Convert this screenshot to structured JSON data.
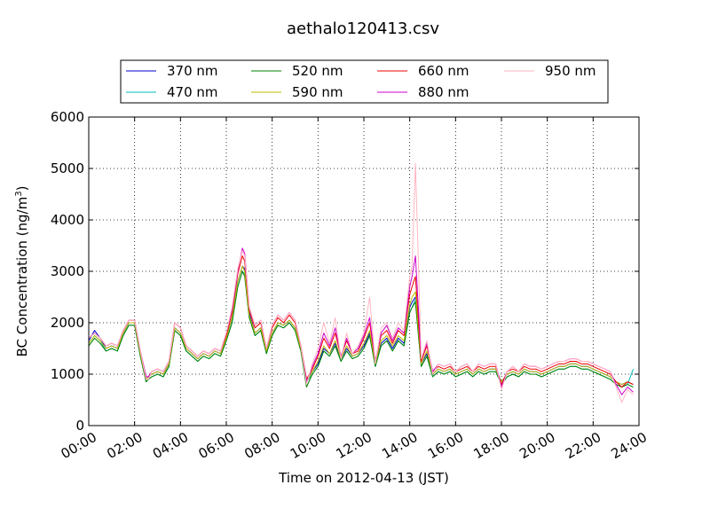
{
  "chart_data": {
    "type": "line",
    "title": "aethalo120413.csv",
    "xlabel": "Time on 2012-04-13 (JST)",
    "ylabel": "BC Concentration (ng/m",
    "ylabel_sup": "3",
    "ylabel_end": ")",
    "xlim": [
      0,
      24
    ],
    "ylim": [
      0,
      6000
    ],
    "x_ticks": [
      0,
      2,
      4,
      6,
      8,
      10,
      12,
      14,
      16,
      18,
      20,
      22,
      24
    ],
    "x_tick_labels": [
      "00:00",
      "02:00",
      "04:00",
      "06:00",
      "08:00",
      "10:00",
      "12:00",
      "14:00",
      "16:00",
      "18:00",
      "20:00",
      "22:00",
      "24:00"
    ],
    "y_ticks": [
      0,
      1000,
      2000,
      3000,
      4000,
      5000,
      6000
    ],
    "y_tick_labels": [
      "0",
      "1000",
      "2000",
      "3000",
      "4000",
      "5000",
      "6000"
    ],
    "grid": true,
    "legend_placement": "top-center",
    "base_x": [
      0,
      0.25,
      0.5,
      0.75,
      1.0,
      1.25,
      1.5,
      1.75,
      2.0,
      2.25,
      2.5,
      2.6,
      2.75,
      3.0,
      3.25,
      3.5,
      3.75,
      4.0,
      4.25,
      4.5,
      4.75,
      5.0,
      5.25,
      5.5,
      5.75,
      6.0,
      6.25,
      6.5,
      6.7,
      6.8,
      7.0,
      7.25,
      7.5,
      7.75,
      8.0,
      8.25,
      8.5,
      8.75,
      9.0,
      9.25,
      9.5,
      9.75,
      10.0,
      10.25,
      10.5,
      10.75,
      11.0,
      11.25,
      11.5,
      11.75,
      12.0,
      12.25,
      12.5,
      12.75,
      13.0,
      13.25,
      13.5,
      13.75,
      14.0,
      14.1,
      14.25,
      14.5,
      14.75,
      15.0,
      15.25,
      15.5,
      15.75,
      16.0,
      16.25,
      16.5,
      16.75,
      17.0,
      17.25,
      17.5,
      17.75,
      18.0,
      18.25,
      18.5,
      18.75,
      19.0,
      19.25,
      19.5,
      19.75,
      20.0,
      20.25,
      20.5,
      20.75,
      21.0,
      21.25,
      21.5,
      21.75,
      22.0,
      22.25,
      22.5,
      22.75,
      23.0,
      23.25,
      23.5,
      23.75
    ],
    "series": [
      {
        "name": "370 nm",
        "color": "#0000cc",
        "values": [
          1650,
          1850,
          1700,
          1500,
          1550,
          1500,
          1800,
          2000,
          2000,
          1400,
          900,
          950,
          1000,
          1050,
          1000,
          1200,
          1900,
          1800,
          1500,
          1400,
          1300,
          1400,
          1350,
          1450,
          1400,
          1700,
          2100,
          2800,
          3100,
          3050,
          2200,
          1800,
          1900,
          1450,
          1800,
          2000,
          1950,
          2050,
          1900,
          1500,
          900,
          1050,
          1200,
          1500,
          1400,
          1600,
          1300,
          1500,
          1350,
          1400,
          1550,
          1800,
          1200,
          1600,
          1700,
          1500,
          1700,
          1600,
          2300,
          2400,
          2500,
          1200,
          1400,
          1000,
          1100,
          1050,
          1100,
          1000,
          1050,
          1100,
          1000,
          1100,
          1050,
          1100,
          1100,
          850,
          1000,
          1050,
          1000,
          1100,
          1050,
          1050,
          1000,
          1050,
          1100,
          1150,
          1150,
          1200,
          1200,
          1150,
          1150,
          1100,
          1050,
          1000,
          950,
          850,
          800,
          850,
          800
        ]
      },
      {
        "name": "470 nm",
        "color": "#00bbbb",
        "values": [
          1600,
          1750,
          1650,
          1450,
          1500,
          1450,
          1750,
          1950,
          1950,
          1350,
          850,
          900,
          950,
          1000,
          950,
          1150,
          1850,
          1750,
          1450,
          1350,
          1250,
          1350,
          1300,
          1400,
          1350,
          1650,
          2000,
          2700,
          3000,
          2950,
          2100,
          1750,
          1850,
          1400,
          1750,
          1950,
          1900,
          2000,
          1850,
          1450,
          850,
          1000,
          1150,
          1450,
          1350,
          1550,
          1250,
          1450,
          1300,
          1350,
          1500,
          1750,
          1150,
          1550,
          1650,
          1450,
          1650,
          1550,
          2200,
          2300,
          2450,
          1150,
          1350,
          950,
          1050,
          1000,
          1050,
          950,
          1000,
          1050,
          950,
          1050,
          1000,
          1050,
          1050,
          800,
          950,
          1000,
          950,
          1050,
          1000,
          1000,
          950,
          1000,
          1050,
          1100,
          1100,
          1150,
          1150,
          1100,
          1100,
          1050,
          1000,
          950,
          900,
          800,
          750,
          800,
          1100
        ]
      },
      {
        "name": "520 nm",
        "color": "#008000",
        "values": [
          1550,
          1700,
          1600,
          1450,
          1500,
          1450,
          1750,
          1950,
          1950,
          1350,
          850,
          900,
          950,
          1000,
          950,
          1150,
          1850,
          1750,
          1450,
          1350,
          1250,
          1350,
          1300,
          1400,
          1350,
          1650,
          2000,
          2700,
          3000,
          2900,
          2100,
          1750,
          1850,
          1400,
          1750,
          1950,
          1900,
          2000,
          1850,
          1450,
          750,
          1000,
          1150,
          1450,
          1350,
          1550,
          1250,
          1450,
          1300,
          1350,
          1500,
          1750,
          1150,
          1550,
          1650,
          1450,
          1650,
          1550,
          2200,
          2300,
          2400,
          1150,
          1350,
          950,
          1050,
          1000,
          1050,
          950,
          1000,
          1050,
          950,
          1050,
          1000,
          1050,
          1050,
          800,
          950,
          1000,
          950,
          1050,
          1000,
          1000,
          950,
          1000,
          1050,
          1100,
          1100,
          1150,
          1150,
          1100,
          1100,
          1050,
          1000,
          950,
          900,
          800,
          750,
          800,
          750
        ]
      },
      {
        "name": "590 nm",
        "color": "#bbbb00",
        "values": [
          1600,
          1750,
          1650,
          1500,
          1550,
          1500,
          1800,
          2000,
          2000,
          1400,
          900,
          950,
          1000,
          1050,
          1000,
          1200,
          1900,
          1800,
          1500,
          1400,
          1300,
          1400,
          1350,
          1450,
          1400,
          1700,
          2100,
          2800,
          3100,
          3000,
          2150,
          1800,
          1900,
          1450,
          1800,
          2000,
          1950,
          2050,
          1900,
          1500,
          850,
          1050,
          1250,
          1550,
          1400,
          1650,
          1300,
          1550,
          1350,
          1400,
          1600,
          1850,
          1200,
          1650,
          1750,
          1550,
          1750,
          1650,
          2350,
          2500,
          2600,
          1200,
          1450,
          1000,
          1100,
          1050,
          1100,
          1000,
          1050,
          1100,
          1000,
          1100,
          1050,
          1100,
          1100,
          850,
          1000,
          1050,
          1000,
          1100,
          1050,
          1050,
          1000,
          1050,
          1100,
          1150,
          1150,
          1200,
          1200,
          1150,
          1150,
          1100,
          1050,
          1000,
          950,
          850,
          800,
          850,
          800
        ]
      },
      {
        "name": "660 nm",
        "color": "#ee0000",
        "values": [
          1700,
          1800,
          1700,
          1550,
          1600,
          1550,
          1850,
          2050,
          2050,
          1450,
          950,
          950,
          1050,
          1100,
          1050,
          1250,
          2000,
          1900,
          1550,
          1450,
          1350,
          1450,
          1400,
          1500,
          1450,
          1750,
          2200,
          2950,
          3300,
          3200,
          2250,
          1900,
          2000,
          1500,
          1900,
          2100,
          2000,
          2150,
          2000,
          1550,
          900,
          1100,
          1350,
          1700,
          1500,
          1800,
          1350,
          1650,
          1400,
          1450,
          1700,
          2000,
          1250,
          1750,
          1850,
          1600,
          1850,
          1750,
          2550,
          2700,
          2900,
          1250,
          1550,
          1050,
          1150,
          1100,
          1150,
          1050,
          1100,
          1150,
          1050,
          1150,
          1100,
          1150,
          1150,
          800,
          1050,
          1100,
          1050,
          1150,
          1100,
          1100,
          1050,
          1100,
          1150,
          1200,
          1200,
          1250,
          1250,
          1200,
          1200,
          1150,
          1100,
          1050,
          1000,
          850,
          750,
          850,
          800
        ]
      },
      {
        "name": "880 nm",
        "color": "#cc00cc",
        "values": [
          1700,
          1800,
          1700,
          1550,
          1600,
          1550,
          1850,
          2050,
          2050,
          1450,
          950,
          950,
          1050,
          1100,
          1050,
          1250,
          2000,
          1900,
          1550,
          1450,
          1350,
          1450,
          1400,
          1500,
          1450,
          1800,
          2250,
          3000,
          3450,
          3350,
          2300,
          1950,
          2050,
          1500,
          1950,
          2150,
          2050,
          2200,
          2050,
          1550,
          850,
          1150,
          1400,
          1800,
          1550,
          1900,
          1350,
          1700,
          1400,
          1500,
          1750,
          2100,
          1250,
          1800,
          1950,
          1650,
          1900,
          1800,
          2700,
          2900,
          3300,
          1300,
          1600,
          1050,
          1200,
          1150,
          1200,
          1050,
          1150,
          1200,
          1050,
          1200,
          1150,
          1200,
          1200,
          750,
          1050,
          1150,
          1050,
          1200,
          1150,
          1150,
          1100,
          1150,
          1200,
          1250,
          1250,
          1300,
          1300,
          1250,
          1250,
          1200,
          1150,
          1100,
          1050,
          800,
          600,
          750,
          650
        ]
      },
      {
        "name": "950 nm",
        "color": "#ffb6c1",
        "values": [
          1700,
          1800,
          1700,
          1550,
          1600,
          1550,
          1850,
          2050,
          2050,
          1450,
          900,
          900,
          1050,
          1100,
          1050,
          1250,
          2000,
          1900,
          1550,
          1450,
          1350,
          1450,
          1400,
          1500,
          1450,
          1800,
          2300,
          3050,
          3400,
          3300,
          2300,
          1950,
          2050,
          1500,
          1950,
          2150,
          2050,
          2200,
          2050,
          1550,
          800,
          1200,
          1500,
          2000,
          1600,
          2100,
          1300,
          1800,
          1400,
          1550,
          1800,
          2500,
          1200,
          1900,
          2000,
          1700,
          2000,
          1850,
          2900,
          3100,
          5100,
          1300,
          1650,
          1000,
          1200,
          1150,
          1200,
          1050,
          1150,
          1200,
          1050,
          1200,
          1150,
          1200,
          1200,
          700,
          1050,
          1150,
          1050,
          1200,
          1150,
          1150,
          1100,
          1150,
          1200,
          1250,
          1250,
          1300,
          1300,
          1250,
          1250,
          1200,
          1150,
          1100,
          1050,
          750,
          450,
          700,
          600
        ]
      }
    ]
  }
}
